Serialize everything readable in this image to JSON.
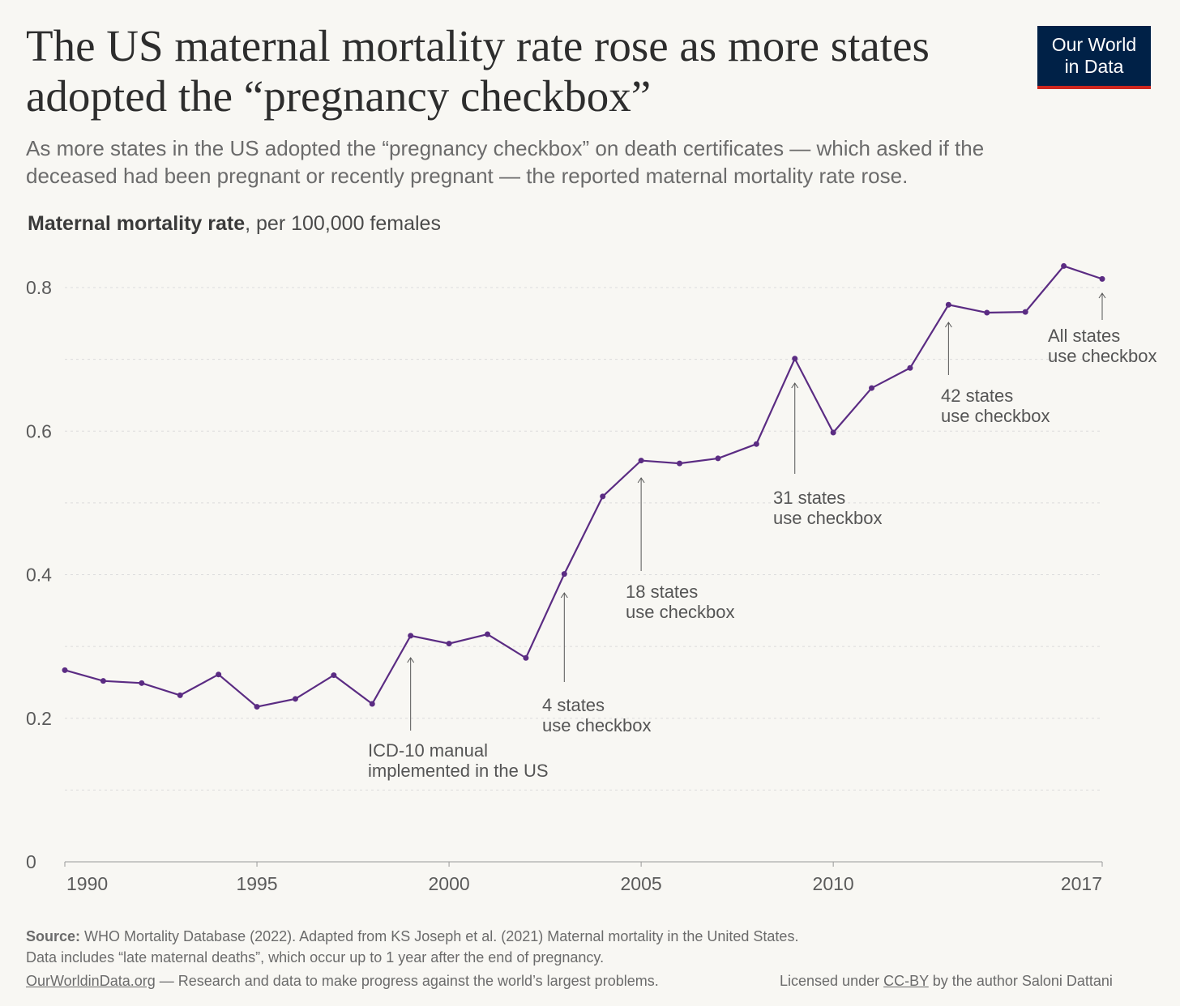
{
  "header": {
    "title": "The US maternal mortality rate rose as more states adopted the “pregnancy checkbox”",
    "subtitle": "As more states in the US adopted the “pregnancy checkbox” on death certificates — which asked if the deceased had been pregnant or recently pregnant — the reported maternal mortality rate rose.",
    "logo_line1": "Our World",
    "logo_line2": "in Data"
  },
  "colors": {
    "line": "#5b2c83",
    "background": "#f8f7f3",
    "logo_bg": "#002147",
    "logo_accent": "#ce261e"
  },
  "chart_data": {
    "type": "line",
    "ylabel_bold": "Maternal mortality rate",
    "ylabel_rest": ", per 100,000 females",
    "x": [
      1990,
      1991,
      1992,
      1993,
      1994,
      1995,
      1996,
      1997,
      1998,
      1999,
      2000,
      2001,
      2002,
      2003,
      2004,
      2005,
      2006,
      2007,
      2008,
      2009,
      2010,
      2011,
      2012,
      2013,
      2014,
      2015,
      2016,
      2017
    ],
    "series": [
      {
        "values": [
          0.267,
          0.252,
          0.249,
          0.232,
          0.261,
          0.216,
          0.227,
          0.26,
          0.22,
          0.315,
          0.304,
          0.317,
          0.284,
          0.401,
          0.509,
          0.559,
          0.555,
          0.562,
          0.582,
          0.701,
          0.598,
          0.66,
          0.688,
          0.776,
          0.765,
          0.766,
          0.83,
          0.812
        ]
      }
    ],
    "xlim": [
      1990,
      2017
    ],
    "ylim": [
      0,
      0.8
    ],
    "xticks": [
      "1990",
      "1995",
      "2000",
      "2005",
      "2010",
      "2017"
    ],
    "yticks": [
      "0",
      "0.2",
      "0.4",
      "0.6",
      "0.8"
    ],
    "grid": "horizontal dotted",
    "annotations": [
      {
        "year": 1999,
        "lines": [
          "ICD-10 manual",
          "implemented in the US"
        ]
      },
      {
        "year": 2003,
        "lines": [
          "4 states",
          "use checkbox"
        ]
      },
      {
        "year": 2005,
        "lines": [
          "18 states",
          "use checkbox"
        ]
      },
      {
        "year": 2009,
        "lines": [
          "31 states",
          "use checkbox"
        ]
      },
      {
        "year": 2013,
        "lines": [
          "42 states",
          "use checkbox"
        ]
      },
      {
        "year": 2017,
        "lines": [
          "All states",
          "use checkbox"
        ]
      }
    ]
  },
  "footer": {
    "source_label": "Source:",
    "source_text": " WHO Mortality Database (2022). Adapted from KS Joseph et al. (2021) Maternal mortality in the United States.",
    "note": "Data includes “late maternal deaths”, which occur up to 1 year after the end of pregnancy.",
    "site_link": "OurWorldinData.org",
    "site_text": " — Research and data to make progress against the world’s largest problems.",
    "license_pre": "Licensed under ",
    "license_link": "CC-BY",
    "license_post": " by the author Saloni Dattani"
  }
}
